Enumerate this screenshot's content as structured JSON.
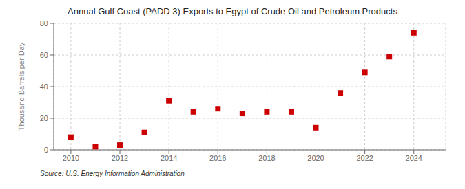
{
  "chart_data": {
    "type": "scatter",
    "title": "Annual Gulf Coast (PADD 3) Exports to Egypt of Crude Oil and Petroleum Products",
    "y_label": "Thousand Barrels per Day",
    "annotations": [
      "Source: U.S. Energy Information Administration"
    ],
    "x": [
      2010,
      2011,
      2012,
      2013,
      2014,
      2015,
      2016,
      2017,
      2018,
      2019,
      2020,
      2021,
      2022,
      2023,
      2024
    ],
    "values": [
      8,
      2,
      3,
      11,
      31,
      24,
      26,
      23,
      24,
      24,
      14,
      36,
      49,
      59,
      74
    ],
    "xlim": [
      2009.3,
      2025.3
    ],
    "xticks": [
      2010,
      2012,
      2014,
      2016,
      2018,
      2020,
      2022,
      2024
    ],
    "ylim": [
      0,
      80
    ],
    "yticks": [
      0,
      20,
      40,
      60,
      80
    ],
    "color": "#cc0000",
    "marker": "square",
    "grid": true
  }
}
